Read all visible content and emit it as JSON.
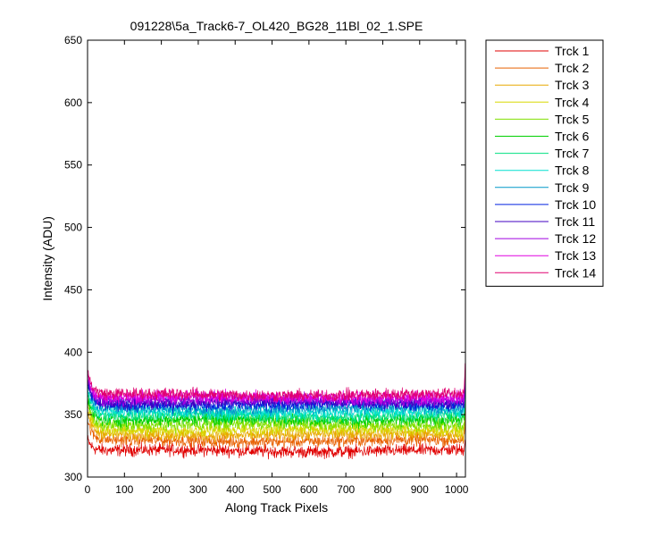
{
  "chart_data": {
    "type": "line",
    "title": "091228\\5a_Track6-7_OL420_BG28_11Bl_02_1.SPE",
    "xlabel": "Along Track Pixels",
    "ylabel": "Intensity (ADU)",
    "xlim": [
      0,
      1024
    ],
    "ylim": [
      300,
      650
    ],
    "xticks": [
      0,
      100,
      200,
      300,
      400,
      500,
      600,
      700,
      800,
      900,
      1000
    ],
    "yticks": [
      300,
      350,
      400,
      450,
      500,
      550,
      600,
      650
    ],
    "grid": false,
    "legend_position": "outside-right-top",
    "points_per_series": 1024,
    "series": [
      {
        "name": "Trck 1",
        "color": "#e00000",
        "baseline": 321,
        "noise": 3.5,
        "start": 330,
        "end_spike": 330
      },
      {
        "name": "Trck 2",
        "color": "#e86000",
        "baseline": 329,
        "noise": 3.5,
        "start": 345,
        "end_spike": 340
      },
      {
        "name": "Trck 3",
        "color": "#e8a800",
        "baseline": 334,
        "noise": 3.5,
        "start": 352,
        "end_spike": 345
      },
      {
        "name": "Trck 4",
        "color": "#d8d800",
        "baseline": 338,
        "noise": 3.5,
        "start": 358,
        "end_spike": 350
      },
      {
        "name": "Trck 5",
        "color": "#80e000",
        "baseline": 342,
        "noise": 3.5,
        "start": 362,
        "end_spike": 355
      },
      {
        "name": "Trck 6",
        "color": "#00d000",
        "baseline": 346,
        "noise": 3.5,
        "start": 365,
        "end_spike": 360
      },
      {
        "name": "Trck 7",
        "color": "#00e080",
        "baseline": 349,
        "noise": 3.5,
        "start": 368,
        "end_spike": 362
      },
      {
        "name": "Trck 8",
        "color": "#00e0d0",
        "baseline": 352,
        "noise": 3.5,
        "start": 372,
        "end_spike": 365
      },
      {
        "name": "Trck 9",
        "color": "#0098c8",
        "baseline": 355,
        "noise": 3.5,
        "start": 375,
        "end_spike": 368
      },
      {
        "name": "Trck 10",
        "color": "#0020e0",
        "baseline": 358,
        "noise": 3.5,
        "start": 378,
        "end_spike": 372
      },
      {
        "name": "Trck 11",
        "color": "#4000c0",
        "baseline": 360,
        "noise": 3.5,
        "start": 380,
        "end_spike": 375
      },
      {
        "name": "Trck 12",
        "color": "#a000e0",
        "baseline": 362,
        "noise": 3.5,
        "start": 382,
        "end_spike": 380
      },
      {
        "name": "Trck 13",
        "color": "#e000e0",
        "baseline": 364,
        "noise": 3.5,
        "start": 384,
        "end_spike": 385
      },
      {
        "name": "Trck 14",
        "color": "#e00070",
        "baseline": 366,
        "noise": 3.5,
        "start": 385,
        "end_spike": 390
      }
    ]
  }
}
